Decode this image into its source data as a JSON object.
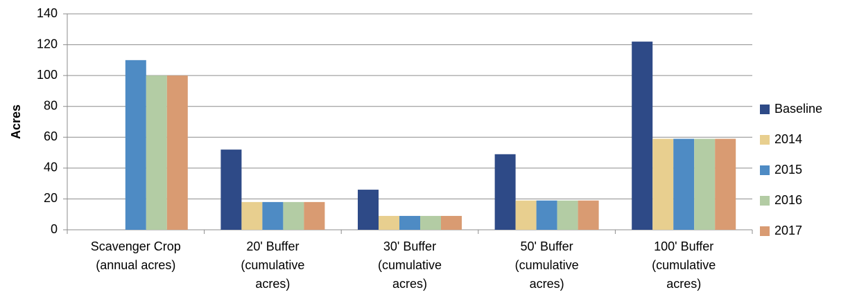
{
  "chart_data": {
    "type": "bar",
    "y_label": "Acres",
    "categories": [
      "Scavenger Crop (annual acres)",
      "20' Buffer (cumulative acres)",
      "30' Buffer (cumulative acres)",
      "50' Buffer (cumulative acres)",
      "100' Buffer (cumulative acres)"
    ],
    "series": [
      {
        "name": "Baseline",
        "color": "#2e4a87",
        "values": [
          null,
          52,
          26,
          49,
          122
        ]
      },
      {
        "name": "2014",
        "color": "#e8cf8f",
        "values": [
          null,
          18,
          9,
          19,
          59
        ]
      },
      {
        "name": "2015",
        "color": "#4e8bc4",
        "values": [
          110,
          18,
          9,
          19,
          59
        ]
      },
      {
        "name": "2016",
        "color": "#b3cca4",
        "values": [
          100,
          18,
          9,
          19,
          59
        ]
      },
      {
        "name": "2017",
        "color": "#d99b72",
        "values": [
          100,
          18,
          9,
          19,
          59
        ]
      }
    ],
    "ylim": [
      0,
      140
    ],
    "yticks": [
      0,
      20,
      40,
      60,
      80,
      100,
      120,
      140
    ],
    "grid": true,
    "legend": "right"
  }
}
